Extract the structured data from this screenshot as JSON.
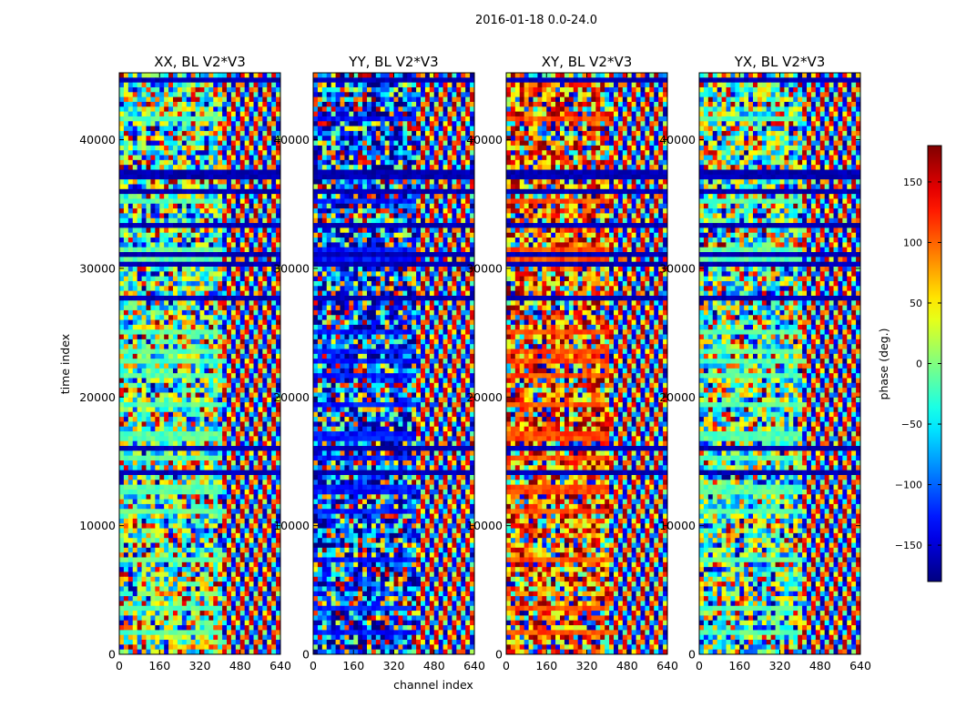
{
  "figure": {
    "suptitle": "2016-01-18 0.0-24.0"
  },
  "chart_data": {
    "type": "heatmap",
    "colormap": "jet",
    "x_label": "channel index",
    "y_label": "time index",
    "x_range": [
      0,
      640
    ],
    "y_range": [
      0,
      45200
    ],
    "x_ticks": [
      "0",
      "160",
      "320",
      "480",
      "640"
    ],
    "y_ticks": [
      "0",
      "10000",
      "20000",
      "30000",
      "40000"
    ],
    "panels": [
      {
        "title": "XX, BL V2*V3",
        "bias": "green"
      },
      {
        "title": "YY, BL V2*V3",
        "bias": "blue"
      },
      {
        "title": "XY, BL V2*V3",
        "bias": "red"
      },
      {
        "title": "YX, BL V2*V3",
        "bias": "green"
      }
    ],
    "colorbar": {
      "label": "phase (deg.)",
      "range": [
        -180,
        180
      ],
      "ticks": [
        "150",
        "100",
        "50",
        "0",
        "−50",
        "−100",
        "−150"
      ]
    }
  }
}
